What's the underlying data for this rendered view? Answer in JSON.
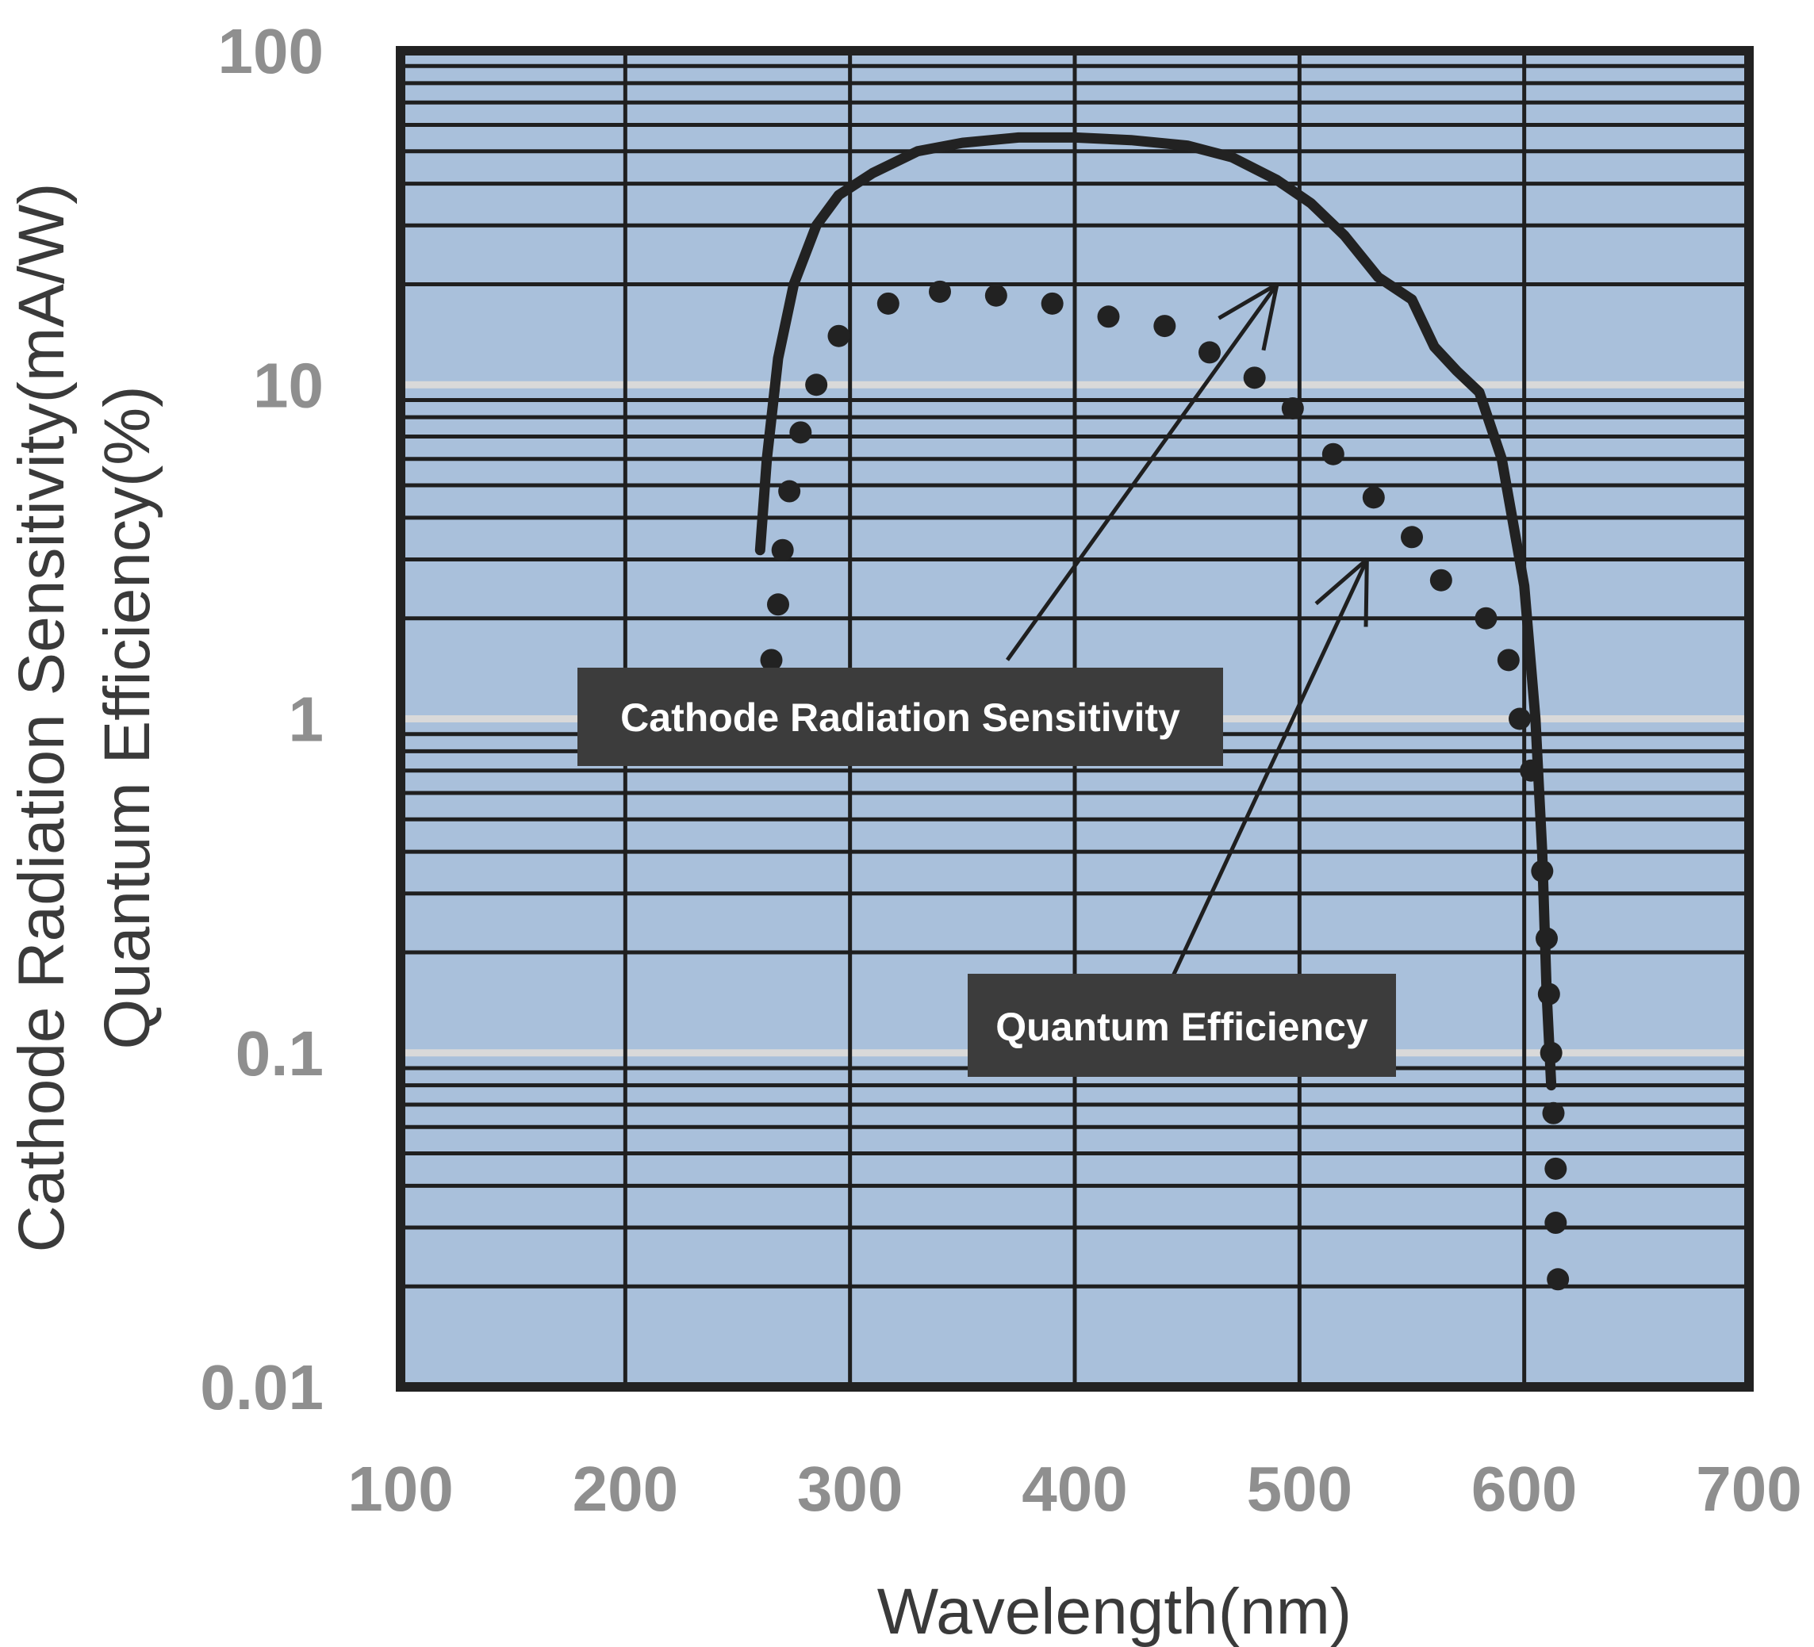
{
  "chart_data": {
    "type": "line",
    "x_axis": {
      "label": "Wavelength(nm)",
      "range": [
        100,
        700
      ],
      "ticks": [
        {
          "value": 100,
          "label": "100"
        },
        {
          "value": 200,
          "label": "200"
        },
        {
          "value": 300,
          "label": "300"
        },
        {
          "value": 400,
          "label": "400"
        },
        {
          "value": 500,
          "label": "500"
        },
        {
          "value": 600,
          "label": "600"
        },
        {
          "value": 700,
          "label": "700"
        }
      ]
    },
    "y_axis": {
      "label_line1": "Cathode Radiation Sensitivity(mA/W)",
      "label_line2": "Quantum Efficiency(%)",
      "scale": "log",
      "range": [
        0.01,
        100
      ],
      "ticks": [
        {
          "value": 100,
          "label": "100"
        },
        {
          "value": 10,
          "label": "10"
        },
        {
          "value": 1,
          "label": "1"
        },
        {
          "value": 0.1,
          "label": "0.1"
        },
        {
          "value": 0.01,
          "label": "0.01"
        }
      ]
    },
    "grid": true,
    "background_color": "#a9c0db",
    "series": [
      {
        "name": "Cathode Radiation Sensitivity",
        "style": "solid",
        "color": "#222222",
        "points": [
          [
            260,
            3.2
          ],
          [
            263,
            6
          ],
          [
            268,
            12
          ],
          [
            275,
            20
          ],
          [
            285,
            30
          ],
          [
            295,
            37
          ],
          [
            310,
            43
          ],
          [
            330,
            50
          ],
          [
            350,
            53
          ],
          [
            375,
            55
          ],
          [
            400,
            55
          ],
          [
            425,
            54
          ],
          [
            450,
            52
          ],
          [
            470,
            48
          ],
          [
            490,
            41
          ],
          [
            505,
            35
          ],
          [
            520,
            28
          ],
          [
            535,
            21
          ],
          [
            550,
            18
          ],
          [
            560,
            13
          ],
          [
            570,
            11
          ],
          [
            580,
            9.5
          ],
          [
            590,
            6
          ],
          [
            600,
            2.5
          ],
          [
            605,
            1.0
          ],
          [
            608,
            0.4
          ],
          [
            610,
            0.15
          ],
          [
            612,
            0.08
          ]
        ]
      },
      {
        "name": "Quantum Efficiency",
        "style": "dotted",
        "color": "#222222",
        "points": [
          [
            265,
            1.5
          ],
          [
            268,
            2.2
          ],
          [
            270,
            3.2
          ],
          [
            273,
            4.8
          ],
          [
            278,
            7.2
          ],
          [
            285,
            10
          ],
          [
            295,
            14
          ],
          [
            317,
            17.5
          ],
          [
            340,
            19
          ],
          [
            365,
            18.5
          ],
          [
            390,
            17.5
          ],
          [
            415,
            16
          ],
          [
            440,
            15
          ],
          [
            460,
            12.5
          ],
          [
            480,
            10.5
          ],
          [
            497,
            8.5
          ],
          [
            515,
            6.2
          ],
          [
            533,
            4.6
          ],
          [
            550,
            3.5
          ],
          [
            563,
            2.6
          ],
          [
            583,
            2.0
          ],
          [
            593,
            1.5
          ],
          [
            598,
            1.0
          ],
          [
            603,
            0.7
          ],
          [
            608,
            0.35
          ],
          [
            610,
            0.22
          ],
          [
            611,
            0.15
          ],
          [
            612,
            0.1
          ],
          [
            613,
            0.066
          ],
          [
            614,
            0.045
          ],
          [
            614,
            0.031
          ],
          [
            615,
            0.021
          ]
        ]
      }
    ],
    "annotations": [
      {
        "id": "sensitivity",
        "text": "Cathode Radiation Sensitivity",
        "arrow_from": [
          370,
          1.5
        ],
        "arrow_to": [
          490,
          20
        ]
      },
      {
        "id": "qe",
        "text": "Quantum Efficiency",
        "arrow_from": [
          440,
          0.15
        ],
        "arrow_to": [
          530,
          3
        ]
      }
    ]
  }
}
